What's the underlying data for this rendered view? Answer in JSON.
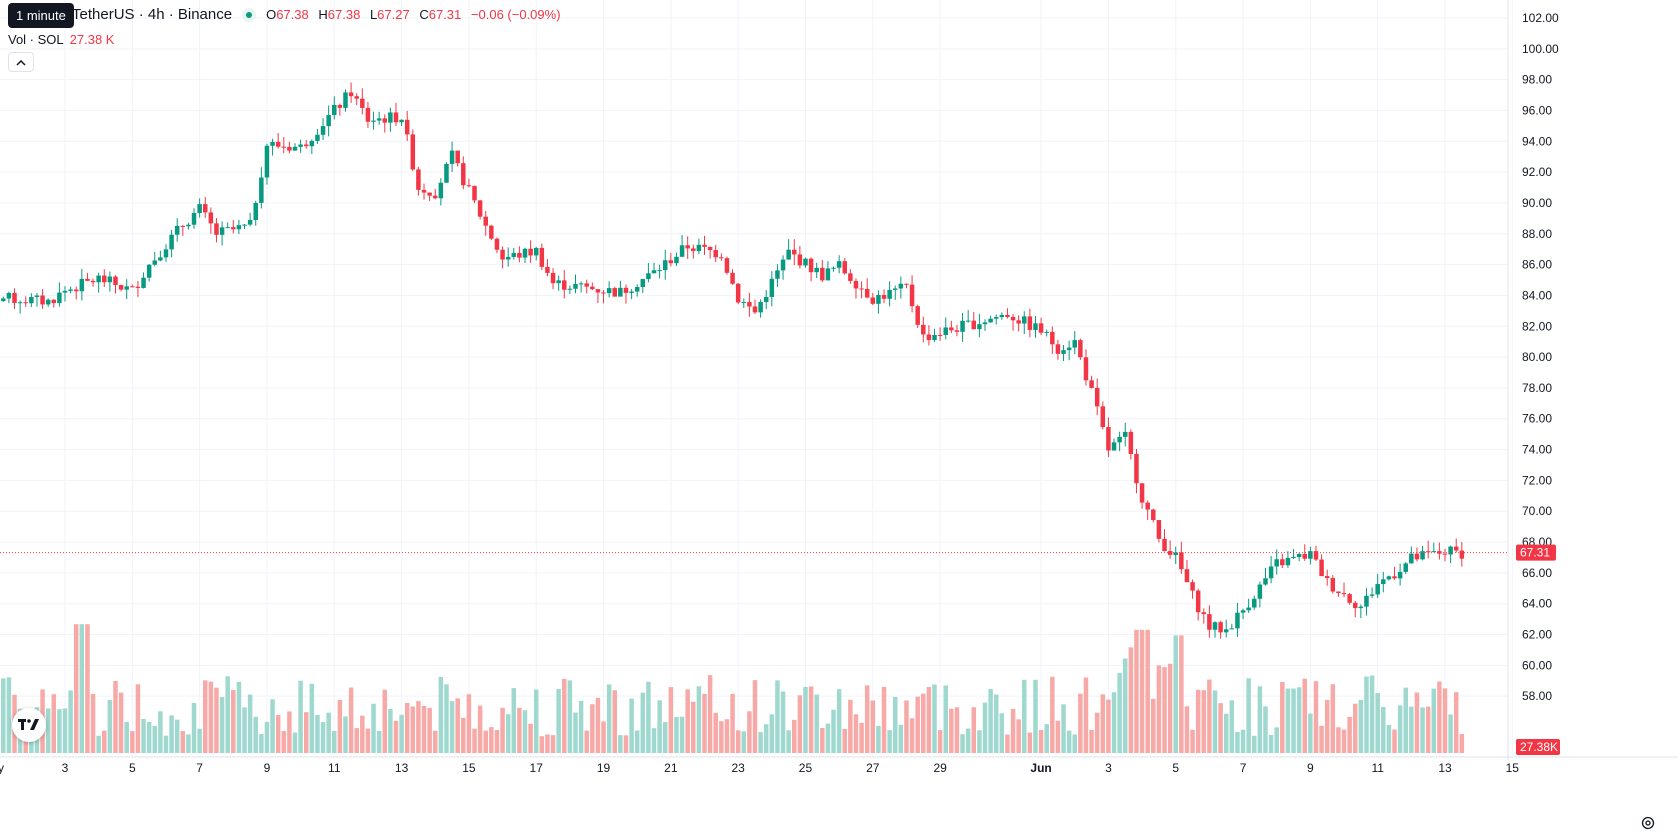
{
  "header": {
    "tooltip": "1 minute",
    "symbol": "TetherUS · 4h · Binance",
    "ohlc": {
      "o_label": "O",
      "o": "67.38",
      "h_label": "H",
      "h": "67.38",
      "l_label": "L",
      "l": "67.27",
      "c_label": "C",
      "c": "67.31",
      "change": "−0.06 (−0.09%)"
    },
    "volume_label": "Vol · SOL",
    "volume_value": "27.38 K"
  },
  "colors": {
    "up": "#089981",
    "down": "#f23645",
    "up_vol": "#9fd8cf",
    "down_vol": "#f7a9a7",
    "grid": "#f0f3fa",
    "price_tag": "#f23645"
  },
  "price_tag": "67.31",
  "volume_tag": "27.38K",
  "icons": {
    "collapse": "chevron-up-icon",
    "logo": "tradingview-logo",
    "settings": "gear-icon"
  },
  "chart_data": {
    "type": "candlestick",
    "y_axis": {
      "min": 56,
      "max": 102,
      "ticks": [
        "58.00",
        "60.00",
        "62.00",
        "64.00",
        "66.00",
        "68.00",
        "70.00",
        "72.00",
        "74.00",
        "76.00",
        "78.00",
        "80.00",
        "82.00",
        "84.00",
        "86.00",
        "88.00",
        "90.00",
        "92.00",
        "94.00",
        "96.00",
        "98.00",
        "100.00",
        "102.00"
      ]
    },
    "x_axis": {
      "labels": [
        "ay",
        "3",
        "5",
        "7",
        "9",
        "11",
        "13",
        "15",
        "17",
        "19",
        "21",
        "23",
        "25",
        "27",
        "29",
        "Jun",
        "3",
        "5",
        "7",
        "9",
        "11",
        "13",
        "15"
      ],
      "label_days": [
        1,
        3,
        5,
        7,
        9,
        11,
        13,
        15,
        17,
        19,
        21,
        23,
        25,
        27,
        29,
        32,
        34,
        36,
        38,
        40,
        42,
        44,
        46
      ]
    },
    "grid": true,
    "last_price": 67.31,
    "close_path": [
      [
        0.0,
        84.0
      ],
      [
        2.5,
        83.6
      ],
      [
        3.0,
        84.3
      ],
      [
        4.0,
        85.1
      ],
      [
        5.0,
        84.3
      ],
      [
        5.5,
        86.0
      ],
      [
        6.5,
        88.6
      ],
      [
        7.0,
        89.6
      ],
      [
        7.5,
        88.0
      ],
      [
        8.5,
        88.5
      ],
      [
        9.0,
        93.8
      ],
      [
        10.0,
        93.6
      ],
      [
        11.0,
        96.0
      ],
      [
        11.5,
        97.2
      ],
      [
        12.0,
        95.4
      ],
      [
        13.0,
        95.6
      ],
      [
        13.5,
        91.0
      ],
      [
        14.0,
        90.7
      ],
      [
        14.5,
        93.0
      ],
      [
        15.5,
        88.5
      ],
      [
        16.0,
        86.4
      ],
      [
        17.0,
        86.9
      ],
      [
        17.5,
        84.8
      ],
      [
        19.5,
        84.2
      ],
      [
        20.5,
        85.5
      ],
      [
        21.5,
        87.2
      ],
      [
        22.5,
        86.7
      ],
      [
        23.0,
        83.8
      ],
      [
        23.5,
        82.9
      ],
      [
        24.5,
        86.8
      ],
      [
        25.5,
        85.3
      ],
      [
        26.0,
        85.9
      ],
      [
        27.0,
        83.8
      ],
      [
        28.0,
        84.5
      ],
      [
        28.5,
        81.3
      ],
      [
        30.0,
        82.2
      ],
      [
        31.0,
        82.8
      ],
      [
        32.0,
        81.7
      ],
      [
        32.5,
        80.6
      ],
      [
        33.0,
        81.0
      ],
      [
        33.5,
        77.7
      ],
      [
        34.0,
        74.0
      ],
      [
        34.5,
        74.8
      ],
      [
        35.0,
        70.9
      ],
      [
        35.5,
        68.2
      ],
      [
        36.0,
        67.0
      ],
      [
        36.5,
        64.5
      ],
      [
        37.0,
        62.5
      ],
      [
        37.5,
        62.3
      ],
      [
        38.0,
        63.6
      ],
      [
        38.5,
        65.1
      ],
      [
        39.0,
        66.6
      ],
      [
        40.0,
        67.2
      ],
      [
        40.5,
        65.4
      ],
      [
        41.0,
        64.6
      ],
      [
        41.5,
        63.8
      ],
      [
        42.0,
        65.3
      ],
      [
        42.5,
        66.0
      ],
      [
        43.0,
        66.9
      ],
      [
        44.0,
        67.4
      ],
      [
        44.5,
        67.31
      ]
    ],
    "volume_spikes": {
      "day_3_4": 46,
      "day_34_5": 34,
      "day_36": 32
    },
    "volume_max": 50
  }
}
